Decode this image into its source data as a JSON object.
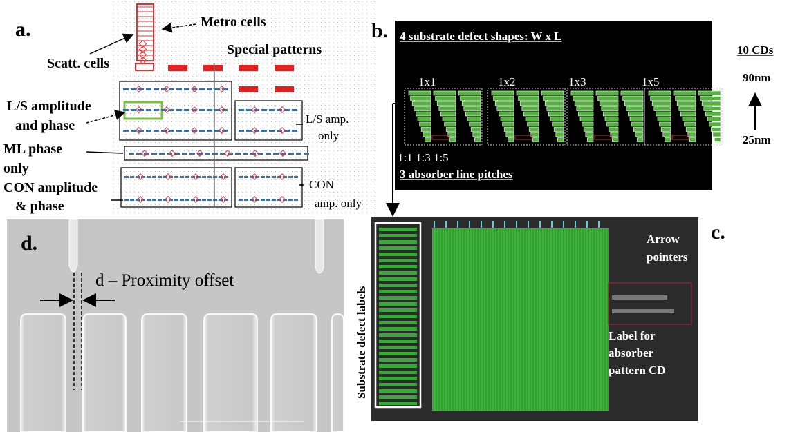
{
  "panel_a": {
    "label": "a.",
    "metro_cells": "Metro cells",
    "scatt_cells": "Scatt. cells",
    "special_patterns": "Special patterns",
    "ls_amp_phase": [
      "L/S amplitude",
      "and phase"
    ],
    "ls_amp_only": [
      "L/S amp.",
      "only"
    ],
    "ml_phase_only": [
      "ML phase",
      "only"
    ],
    "con_amp_phase": [
      "CON amplitude",
      "& phase"
    ],
    "con_amp_only": [
      "CON",
      "amp. only"
    ]
  },
  "panel_b": {
    "label": "b.",
    "title": "4 substrate defect shapes: W x L",
    "shapes": [
      "1x1",
      "1x2",
      "1x3",
      "1x5"
    ],
    "cd_count": "10 CDs",
    "cd_max": "90nm",
    "cd_min": "25nm",
    "pitches": "1:1 1:3 1:5",
    "pitches_caption": "3 absorber line pitches"
  },
  "panel_c": {
    "label": "c.",
    "substrate_defect_labels": "Substrate defect labels",
    "arrow_pointers": [
      "Arrow",
      "pointers"
    ],
    "cd_label": [
      "Label for",
      "absorber",
      "pattern CD"
    ]
  },
  "panel_d": {
    "label": "d.",
    "proximity_offset": "d – Proximity offset"
  }
}
